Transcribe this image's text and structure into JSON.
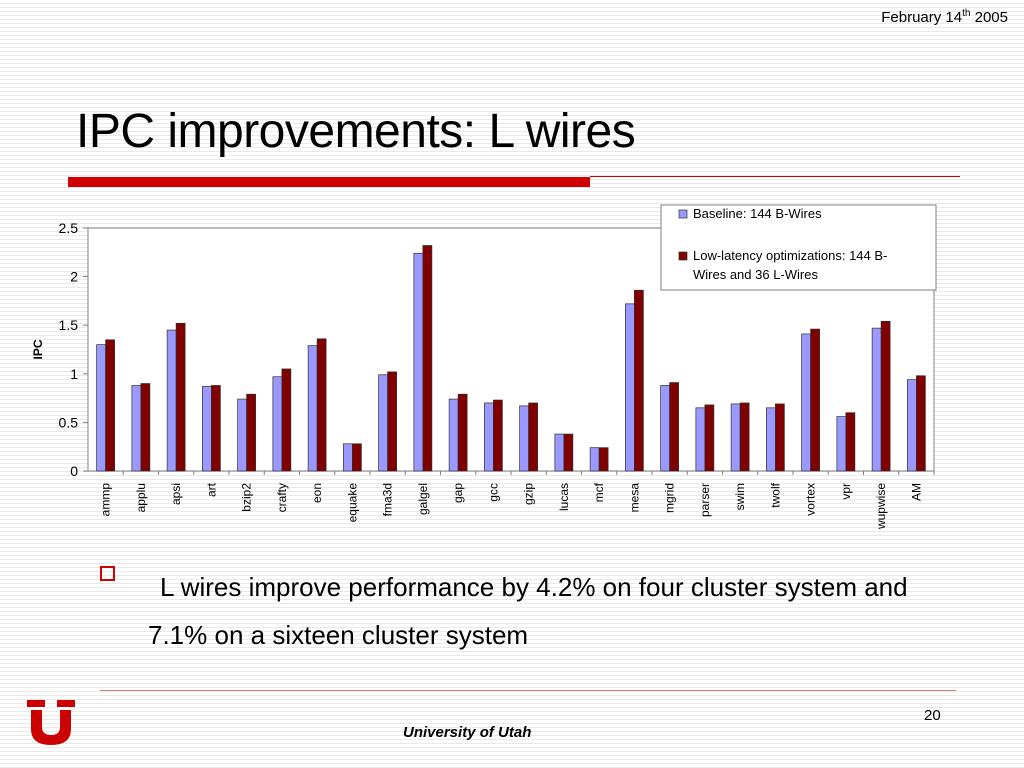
{
  "header": {
    "date_prefix": "February 14",
    "date_sup": "th",
    "date_year": " 2005"
  },
  "title": "IPC improvements: L wires",
  "bullet_text": "L wires improve performance by 4.2% on four cluster system and 7.1% on a sixteen cluster system",
  "footer": {
    "page_number": "20",
    "university": "University of Utah"
  },
  "colors": {
    "accent_red": "#d00000",
    "baseline": "#9999ff",
    "optimized": "#800000"
  },
  "chart_data": {
    "type": "bar",
    "ylabel": "IPC",
    "ylim": [
      0,
      2.5
    ],
    "yticks": [
      "0",
      "0.5",
      "1",
      "1.5",
      "2",
      "2.5"
    ],
    "grid": false,
    "legend_position": "top-right",
    "categories": [
      "ammp",
      "applu",
      "apsi",
      "art",
      "bzip2",
      "crafty",
      "eon",
      "equake",
      "fma3d",
      "galgel",
      "gap",
      "gcc",
      "gzip",
      "lucas",
      "mcf",
      "mesa",
      "mgrid",
      "parser",
      "swim",
      "twolf",
      "vortex",
      "vpr",
      "wupwise",
      "AM"
    ],
    "series": [
      {
        "name": "Baseline: 144 B-Wires",
        "color": "#9999ff",
        "values": [
          1.3,
          0.88,
          1.45,
          0.87,
          0.74,
          0.97,
          1.29,
          0.28,
          0.99,
          2.24,
          0.74,
          0.7,
          0.67,
          0.38,
          0.24,
          1.72,
          0.88,
          0.65,
          0.69,
          0.65,
          1.41,
          0.56,
          1.47,
          0.94
        ]
      },
      {
        "name": "Low-latency optimizations: 144 B-Wires and 36 L-Wires",
        "color": "#800000",
        "values": [
          1.35,
          0.9,
          1.52,
          0.88,
          0.79,
          1.05,
          1.36,
          0.28,
          1.02,
          2.32,
          0.79,
          0.73,
          0.7,
          0.38,
          0.24,
          1.86,
          0.91,
          0.68,
          0.7,
          0.69,
          1.46,
          0.6,
          1.54,
          0.98
        ]
      }
    ],
    "legend_lines": [
      [
        "Baseline: 144 B-Wires"
      ],
      [
        "Low-latency optimizations: 144 B-",
        "Wires and 36 L-Wires"
      ]
    ]
  }
}
